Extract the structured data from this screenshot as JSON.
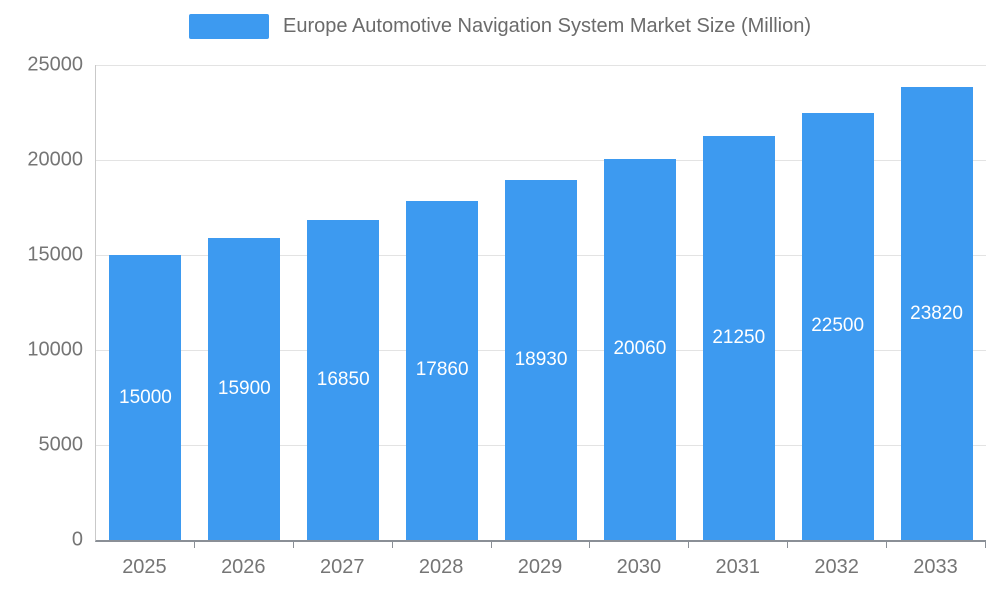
{
  "chart_data": {
    "type": "bar",
    "title": "Europe Automotive Navigation System Market Size (Million)",
    "categories": [
      "2025",
      "2026",
      "2027",
      "2028",
      "2029",
      "2030",
      "2031",
      "2032",
      "2033"
    ],
    "values": [
      15000,
      15900,
      16850,
      17860,
      18930,
      20060,
      21250,
      22500,
      23820
    ],
    "xlabel": "",
    "ylabel": "",
    "ylim": [
      0,
      25000
    ],
    "ytick_step": 5000,
    "ytick_labels": [
      "0",
      "5000",
      "10000",
      "15000",
      "20000",
      "25000"
    ],
    "grid": true,
    "legend_position": "top",
    "bar_color": "#3d9af0",
    "value_label_color": "#ffffff",
    "axis_text_color": "#757575"
  }
}
